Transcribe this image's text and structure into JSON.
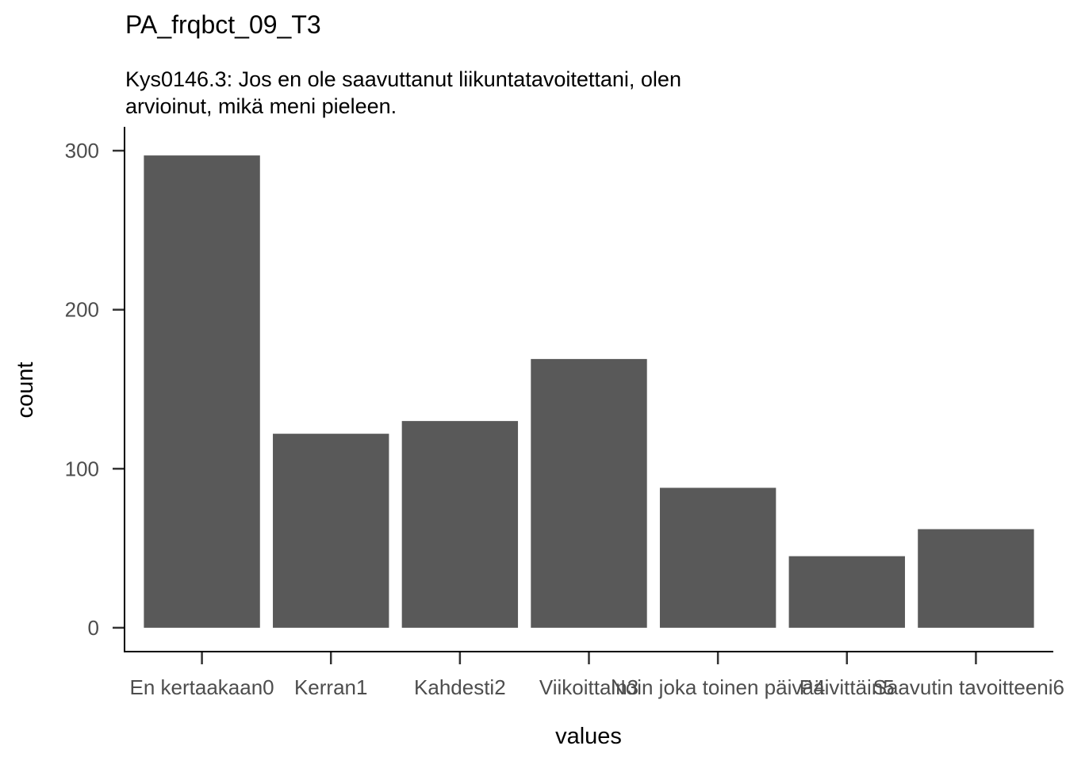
{
  "chart_data": {
    "type": "bar",
    "title": "PA_frqbct_09_T3",
    "subtitle_lines": [
      "Kys0146.3: Jos en ole saavuttanut liikuntatavoitettani, olen",
      "arvioinut, mikä meni pieleen."
    ],
    "xlabel": "values",
    "ylabel": "count",
    "categories": [
      "En kertaakaan0",
      "Kerran1",
      "Kahdesti2",
      "Viikoittain3",
      "Noin joka toinen päivä4",
      "Päivittäin5",
      "Saavutin tavoitteeni6"
    ],
    "values": [
      297,
      122,
      130,
      169,
      88,
      45,
      62
    ],
    "ylim": [
      -15,
      315
    ],
    "yticks": [
      0,
      100,
      200,
      300
    ],
    "ytick_labels": [
      "0",
      "100",
      "200",
      "300"
    ],
    "bar_color": "#595959",
    "grid": false,
    "legend": "none"
  }
}
